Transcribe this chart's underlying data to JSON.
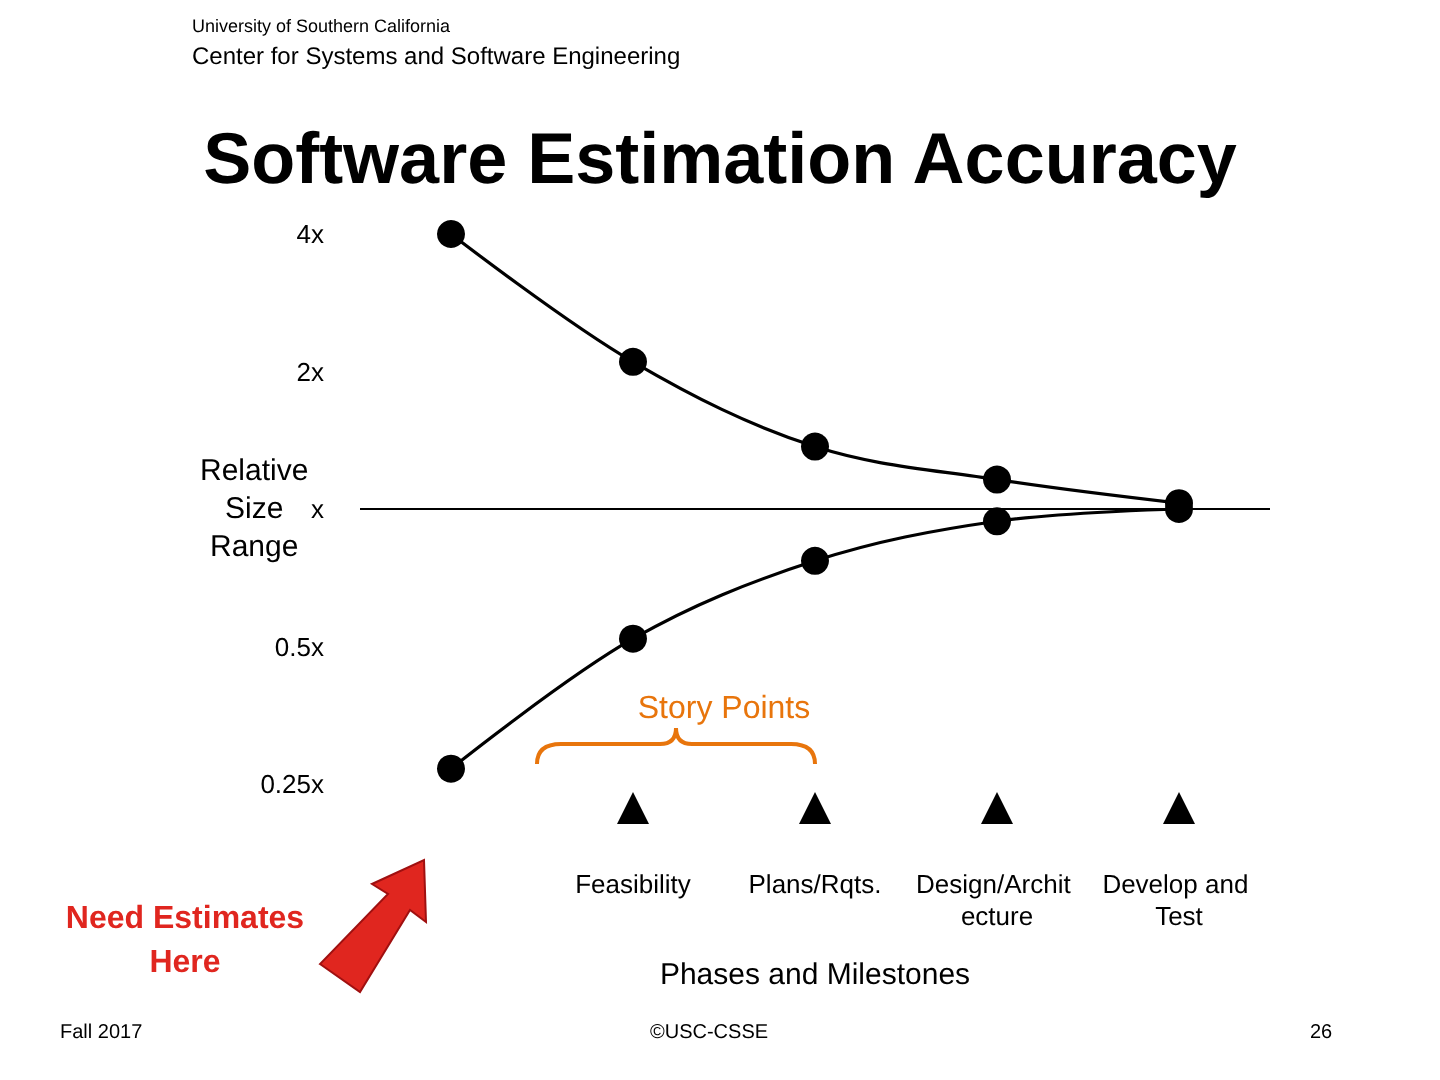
{
  "chart_data": {
    "type": "line",
    "title": "Software Estimation Accuracy",
    "xlabel": "Phases and Milestones",
    "ylabel": "Relative Size Range",
    "categories": [
      null,
      "Feasibility",
      "Plans/Rqts.",
      "Design/Archit ecture",
      "Develop and Test"
    ],
    "series": [
      {
        "color": "#000000",
        "values": [
          4,
          2.1,
          1.37,
          1.16,
          1.03
        ]
      },
      {
        "color": "#000000",
        "values": [
          0.27,
          0.52,
          0.77,
          0.94,
          1.0
        ]
      }
    ],
    "log": "y",
    "ylim": [
      0.25,
      4
    ],
    "yticks": [
      {
        "value": 4,
        "label": "4x"
      },
      {
        "value": 2,
        "label": "2x"
      },
      {
        "value": 1,
        "label": "x"
      },
      {
        "value": 0.5,
        "label": "0.5x"
      },
      {
        "value": 0.25,
        "label": "0.25x"
      }
    ],
    "ref_lines": [
      {
        "axis": "y",
        "value": 1,
        "color": "#000000"
      }
    ],
    "grid": false,
    "marker": "circle",
    "line_style": "solid",
    "annotations": [
      "University of Southern California",
      "Center for Systems and Software Engineering",
      "Story Points",
      "Need Estimates Here",
      "Fall 2017",
      "©USC-CSSE",
      "26"
    ]
  }
}
